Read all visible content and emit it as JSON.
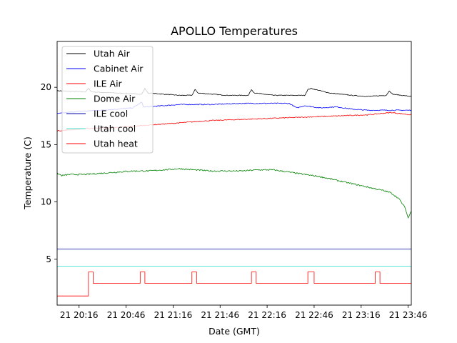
{
  "chart_data": {
    "type": "line",
    "title": "APOLLO Temperatures",
    "xlabel": "Date (GMT)",
    "ylabel": "Temperature (C)",
    "x_unit": "minutes since 20:00",
    "xlim": [
      2,
      228
    ],
    "ylim": [
      1,
      24
    ],
    "x_ticks": [
      {
        "value": 16,
        "label": "21 20:16"
      },
      {
        "value": 46,
        "label": "21 20:46"
      },
      {
        "value": 76,
        "label": "21 21:16"
      },
      {
        "value": 106,
        "label": "21 21:46"
      },
      {
        "value": 136,
        "label": "21 22:16"
      },
      {
        "value": 166,
        "label": "21 22:46"
      },
      {
        "value": 196,
        "label": "21 23:16"
      },
      {
        "value": 226,
        "label": "21 23:46"
      }
    ],
    "y_ticks": [
      {
        "value": 5,
        "label": "5"
      },
      {
        "value": 10,
        "label": "10"
      },
      {
        "value": 15,
        "label": "15"
      },
      {
        "value": 20,
        "label": "20"
      }
    ],
    "grid": false,
    "legend_position": "top-left",
    "series": [
      {
        "name": "Utah Air",
        "color": "#000000",
        "noise": 0.03,
        "x": [
          2,
          20,
          22,
          24,
          40,
          56,
          58,
          60,
          80,
          88,
          90,
          92,
          110,
          124,
          126,
          128,
          140,
          150,
          160,
          162,
          164,
          176,
          190,
          200,
          212,
          214,
          216,
          228
        ],
        "y": [
          19.7,
          19.6,
          19.9,
          19.6,
          19.5,
          19.4,
          19.9,
          19.5,
          19.3,
          19.3,
          19.8,
          19.5,
          19.3,
          19.3,
          19.8,
          19.5,
          19.3,
          19.3,
          19.3,
          19.8,
          19.9,
          19.5,
          19.3,
          19.2,
          19.3,
          19.7,
          19.4,
          19.2
        ]
      },
      {
        "name": "Cabinet Air",
        "color": "#0000ff",
        "noise": 0.04,
        "x": [
          2,
          15,
          30,
          50,
          56,
          57,
          60,
          80,
          100,
          120,
          135,
          150,
          155,
          160,
          170,
          180,
          190,
          200,
          210,
          228
        ],
        "y": [
          17.7,
          17.9,
          18.0,
          18.2,
          18.7,
          18.3,
          18.3,
          18.5,
          18.5,
          18.6,
          18.6,
          18.6,
          18.2,
          18.4,
          18.2,
          18.3,
          18.1,
          18.0,
          18.0,
          18.0
        ]
      },
      {
        "name": "ILE Air",
        "color": "#ff0000",
        "noise": 0.04,
        "x": [
          2,
          20,
          40,
          60,
          80,
          100,
          120,
          140,
          160,
          180,
          200,
          215,
          228
        ],
        "y": [
          16.2,
          16.4,
          16.5,
          16.7,
          16.9,
          17.1,
          17.2,
          17.3,
          17.4,
          17.5,
          17.6,
          17.8,
          17.6
        ]
      },
      {
        "name": "Dome Air",
        "color": "#008000",
        "noise": 0.06,
        "x": [
          2,
          5,
          10,
          20,
          30,
          40,
          50,
          60,
          70,
          80,
          90,
          100,
          110,
          120,
          130,
          140,
          150,
          160,
          170,
          180,
          190,
          200,
          210,
          215,
          220,
          224,
          226,
          228
        ],
        "y": [
          12.5,
          12.3,
          12.4,
          12.4,
          12.5,
          12.6,
          12.7,
          12.7,
          12.8,
          12.9,
          12.8,
          12.7,
          12.7,
          12.7,
          12.8,
          12.8,
          12.6,
          12.4,
          12.2,
          11.9,
          11.6,
          11.3,
          11.0,
          10.8,
          10.3,
          9.5,
          8.6,
          9.2
        ]
      },
      {
        "name": "ILE cool",
        "color": "#0000aa",
        "noise": 0,
        "x": [
          2,
          228
        ],
        "y": [
          5.9,
          5.9
        ]
      },
      {
        "name": "Utah cool",
        "color": "#40e0d0",
        "noise": 0,
        "x": [
          2,
          228
        ],
        "y": [
          4.4,
          4.4
        ]
      },
      {
        "name": "Utah heat",
        "color": "#ff0000",
        "noise": 0,
        "step": true,
        "x": [
          2,
          22,
          22,
          25,
          25,
          55,
          55,
          58,
          58,
          88,
          88,
          91,
          91,
          126,
          126,
          129,
          129,
          162,
          162,
          166,
          166,
          205,
          205,
          208,
          208,
          228
        ],
        "y": [
          1.8,
          1.8,
          3.9,
          3.9,
          2.9,
          2.9,
          3.9,
          3.9,
          2.9,
          2.9,
          3.9,
          3.9,
          2.9,
          2.9,
          3.9,
          3.9,
          2.9,
          2.9,
          3.9,
          3.9,
          2.9,
          2.9,
          3.9,
          3.9,
          2.9,
          2.9
        ]
      }
    ]
  }
}
